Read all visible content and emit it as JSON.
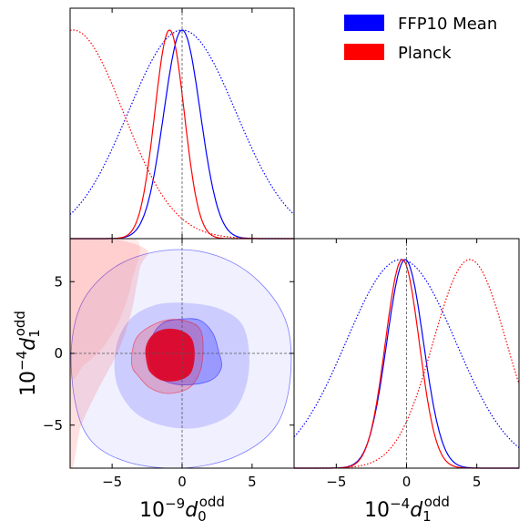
{
  "chart_data": {
    "type": "corner",
    "legend": {
      "placement": "top-right",
      "entries": [
        {
          "name": "FFP10 Mean",
          "color": "#0000ff"
        },
        {
          "name": "Planck",
          "color": "#ff0000"
        }
      ]
    },
    "axes": {
      "d0": {
        "range": [
          -8,
          8
        ],
        "ticks": [
          -5,
          0,
          5
        ],
        "tick_labels": [
          "−5",
          "0",
          "5"
        ],
        "label": {
          "prefix": "10",
          "exp": "−9",
          "sym": "d",
          "sub": "0",
          "sup": "odd"
        }
      },
      "d1": {
        "range": [
          -8,
          8
        ],
        "ticks": [
          -5,
          0,
          5
        ],
        "tick_labels": [
          "−5",
          "0",
          "5"
        ],
        "label": {
          "prefix": "10",
          "exp": "−4",
          "sym": "d",
          "sub": "1",
          "sup": "odd"
        }
      }
    },
    "reference": {
      "d0": 0,
      "d1": 0
    },
    "marginal_d0": [
      {
        "name": "FFP10 Mean",
        "style": "solid",
        "color": "#0000ff",
        "mean": 0.0,
        "sigma": 1.3
      },
      {
        "name": "FFP10 Mean",
        "style": "dotted",
        "color": "#0000ff",
        "mean": 0.0,
        "sigma": 3.85
      },
      {
        "name": "Planck",
        "style": "solid",
        "color": "#ff0000",
        "mean": -0.9,
        "sigma": 1.05
      },
      {
        "name": "Planck",
        "style": "dotted",
        "color": "#ff0000",
        "mean": -7.8,
        "sigma": 3.6
      }
    ],
    "marginal_d1": [
      {
        "name": "FFP10 Mean",
        "style": "solid",
        "color": "#0000ff",
        "mean": -0.1,
        "sigma": 1.3
      },
      {
        "name": "FFP10 Mean",
        "style": "dotted",
        "color": "#0000ff",
        "mean": -0.4,
        "sigma": 3.9
      },
      {
        "name": "Planck",
        "style": "solid",
        "color": "#ff0000",
        "mean": -0.3,
        "sigma": 1.2
      },
      {
        "name": "Planck",
        "style": "dotted",
        "color": "#ff0000",
        "mean": 4.5,
        "sigma": 2.6
      }
    ],
    "joint_contours": [
      {
        "name": "FFP10 Mean",
        "color": "#0000ff",
        "level": "outer",
        "opacity": 0.06,
        "edge": true,
        "points": [
          [
            -7.6,
            -3.6
          ],
          [
            -7.9,
            0.5
          ],
          [
            -7.0,
            3.8
          ],
          [
            -4.5,
            6.2
          ],
          [
            -1.0,
            7.2
          ],
          [
            2.5,
            6.8
          ],
          [
            5.5,
            5.0
          ],
          [
            7.5,
            2.0
          ],
          [
            7.7,
            -2.0
          ],
          [
            6.6,
            -5.2
          ],
          [
            3.8,
            -7.2
          ],
          [
            0.0,
            -8.0
          ],
          [
            -3.8,
            -7.6
          ],
          [
            -6.4,
            -6.2
          ]
        ]
      },
      {
        "name": "FFP10 Mean",
        "color": "#0000ff",
        "level": "mid",
        "opacity": 0.15,
        "edge": false,
        "points": [
          [
            -4.7,
            -2.0
          ],
          [
            -4.7,
            0.5
          ],
          [
            -3.7,
            2.4
          ],
          [
            -1.8,
            3.4
          ],
          [
            0.5,
            3.5
          ],
          [
            2.7,
            3.1
          ],
          [
            4.3,
            2.0
          ],
          [
            4.8,
            -0.2
          ],
          [
            4.5,
            -2.5
          ],
          [
            3.4,
            -4.3
          ],
          [
            1.0,
            -5.2
          ],
          [
            -1.5,
            -5.0
          ],
          [
            -3.5,
            -4.0
          ]
        ]
      },
      {
        "name": "FFP10 Mean",
        "color": "#0000ff",
        "level": "inner",
        "opacity": 0.25,
        "edge": true,
        "points": [
          [
            -2.3,
            -0.4
          ],
          [
            -2.2,
            1.0
          ],
          [
            -1.4,
            2.1
          ],
          [
            0.0,
            2.4
          ],
          [
            1.3,
            2.3
          ],
          [
            2.2,
            1.4
          ],
          [
            2.6,
            0.2
          ],
          [
            2.8,
            -1.0
          ],
          [
            2.0,
            -1.9
          ],
          [
            0.2,
            -2.2
          ],
          [
            -1.3,
            -1.9
          ],
          [
            -2.0,
            -1.2
          ]
        ]
      },
      {
        "name": "Planck",
        "color": "#ff0000",
        "level": "outer",
        "opacity": 0.08,
        "edge": false,
        "points": [
          [
            -8.0,
            8.0
          ],
          [
            -3.3,
            8.0
          ],
          [
            -3.6,
            5.0
          ],
          [
            -4.4,
            2.5
          ],
          [
            -5.6,
            0.5
          ],
          [
            -7.0,
            -0.8
          ],
          [
            -8.0,
            -1.2
          ]
        ]
      },
      {
        "name": "Planck",
        "color": "#ff0000",
        "level": "inner",
        "opacity": 0.12,
        "edge": false,
        "points": [
          [
            -8.0,
            -7.5
          ],
          [
            -8.0,
            8.0
          ],
          [
            -5.0,
            8.0
          ],
          [
            -2.5,
            7.2
          ],
          [
            -3.0,
            6.0
          ],
          [
            -3.6,
            3.0
          ],
          [
            -4.5,
            0.3
          ],
          [
            -6.0,
            -2.5
          ],
          [
            -7.2,
            -5.0
          ]
        ]
      },
      {
        "name": "Planck",
        "color": "#ff0000",
        "level": "mid",
        "opacity": 0.18,
        "edge": true,
        "points": [
          [
            -3.6,
            -0.8
          ],
          [
            -3.4,
            0.8
          ],
          [
            -2.6,
            1.7
          ],
          [
            -1.2,
            2.3
          ],
          [
            0.1,
            2.3
          ],
          [
            1.2,
            1.8
          ],
          [
            1.5,
            0.6
          ],
          [
            1.3,
            -1.2
          ],
          [
            0.5,
            -2.4
          ],
          [
            -1.0,
            -2.8
          ],
          [
            -2.3,
            -2.4
          ],
          [
            -3.1,
            -1.6
          ]
        ]
      },
      {
        "name": "Planck",
        "color": "#e00020",
        "level": "core",
        "opacity": 0.9,
        "edge": false,
        "points": [
          [
            -2.5,
            -0.8
          ],
          [
            -2.6,
            0.4
          ],
          [
            -2.1,
            1.3
          ],
          [
            -1.2,
            1.7
          ],
          [
            -0.1,
            1.6
          ],
          [
            0.7,
            1.0
          ],
          [
            0.9,
            -0.2
          ],
          [
            0.6,
            -1.4
          ],
          [
            -0.3,
            -1.9
          ],
          [
            -1.4,
            -1.9
          ],
          [
            -2.2,
            -1.4
          ]
        ]
      }
    ]
  }
}
